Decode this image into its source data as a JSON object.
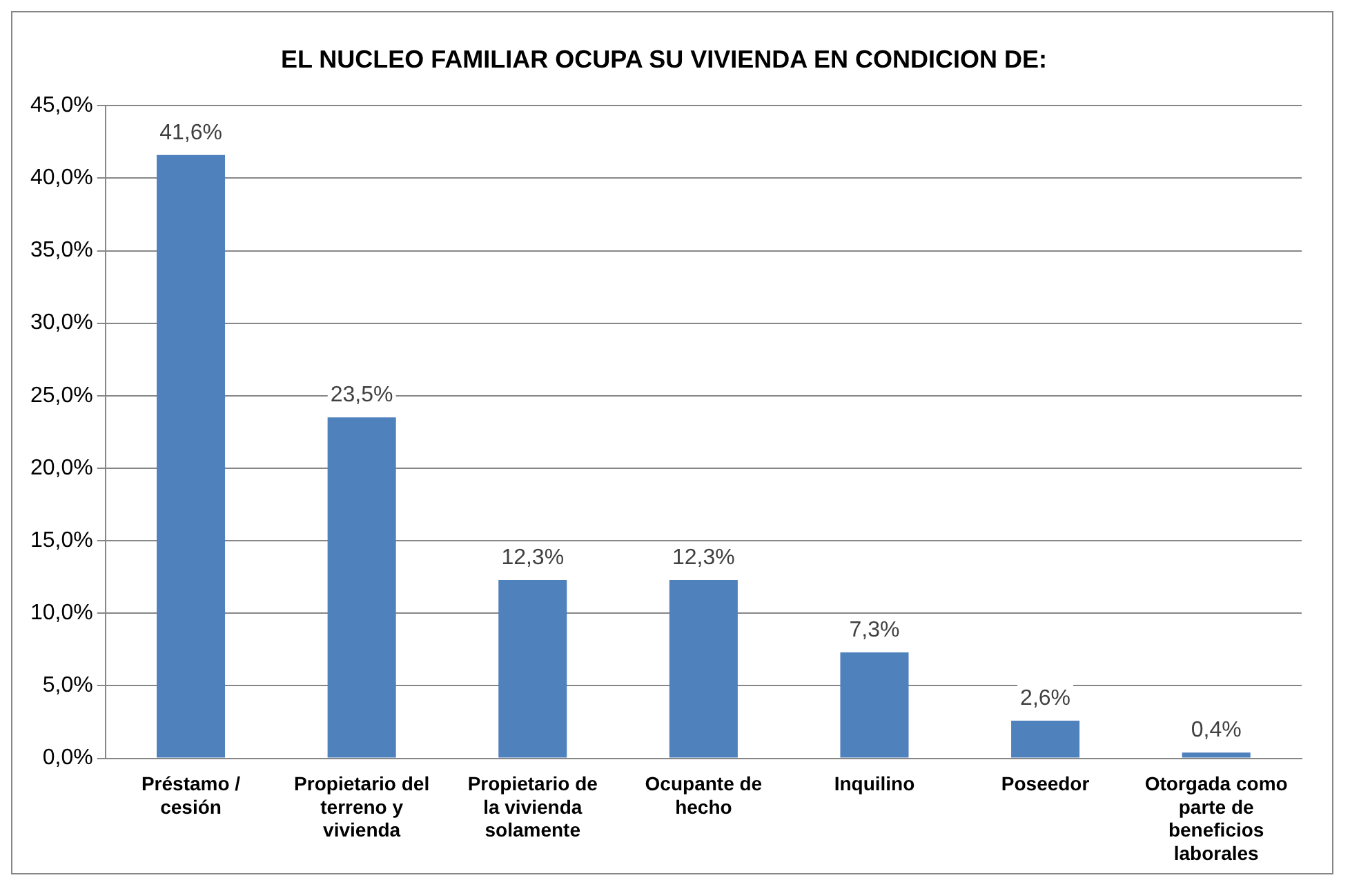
{
  "chart_data": {
    "type": "bar",
    "title": "EL NUCLEO FAMILIAR OCUPA SU VIVIENDA EN CONDICION DE:",
    "categories": [
      "Préstamo / cesión",
      "Propietario del terreno y vivienda",
      "Propietario de la vivienda solamente",
      "Ocupante de hecho",
      "Inquilino",
      "Poseedor",
      "Otorgada como parte de beneficios laborales"
    ],
    "values": [
      41.6,
      23.5,
      12.3,
      12.3,
      7.3,
      2.6,
      0.4
    ],
    "value_labels": [
      "41,6%",
      "23,5%",
      "12,3%",
      "12,3%",
      "7,3%",
      "2,6%",
      "0,4%"
    ],
    "color": "#4f81bd",
    "ylim": [
      0,
      45
    ],
    "yticks": [
      {
        "value": 0,
        "label": "0,0%"
      },
      {
        "value": 5,
        "label": "5,0%"
      },
      {
        "value": 10,
        "label": "10,0%"
      },
      {
        "value": 15,
        "label": "15,0%"
      },
      {
        "value": 20,
        "label": "20,0%"
      },
      {
        "value": 25,
        "label": "25,0%"
      },
      {
        "value": 30,
        "label": "30,0%"
      },
      {
        "value": 35,
        "label": "35,0%"
      },
      {
        "value": 40,
        "label": "40,0%"
      },
      {
        "value": 45,
        "label": "45,0%"
      }
    ],
    "grid": "y",
    "legend": false
  }
}
